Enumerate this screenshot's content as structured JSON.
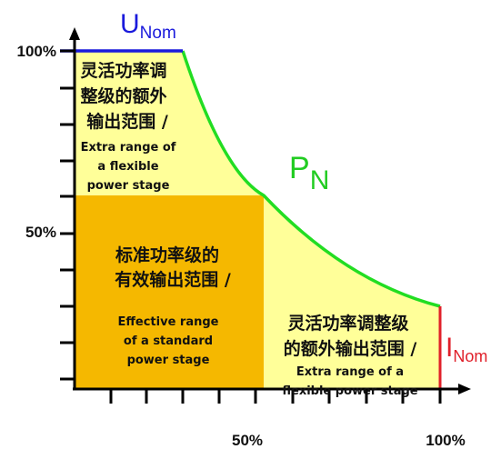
{
  "colors": {
    "upper_region": "#ffff99",
    "effective_region": "#f5b800",
    "power_curve": "#22dd22",
    "voltage_line": "#1a1adc",
    "current_line": "#e0202a",
    "axis": "#000000"
  },
  "y_axis": {
    "label_100": "100%",
    "label_50": "50%"
  },
  "x_axis": {
    "label_50": "50%",
    "label_100": "100%"
  },
  "u_nom": {
    "main": "U",
    "sub": "Nom"
  },
  "p_n": {
    "main": "P",
    "sub": "N"
  },
  "i_nom": {
    "main": "I",
    "sub": "Nom"
  },
  "regions": {
    "upper_extra": {
      "zh_line1": "灵活功率调",
      "zh_line2": "整级的额外",
      "zh_line3": "输出范围 /",
      "en_line1": "Extra range of",
      "en_line2": "a flexible",
      "en_line3": "power stage"
    },
    "effective": {
      "zh_line1": "标准功率级的",
      "zh_line2": "有效输出范围 /",
      "en_line1": "Effective range",
      "en_line2": "of a standard",
      "en_line3": "power stage"
    },
    "right_extra": {
      "zh_line1": "灵活功率调整级",
      "zh_line2": "的额外输出范围 /",
      "en_line1": "Extra range of a",
      "en_line2": "flexible power stage"
    }
  }
}
